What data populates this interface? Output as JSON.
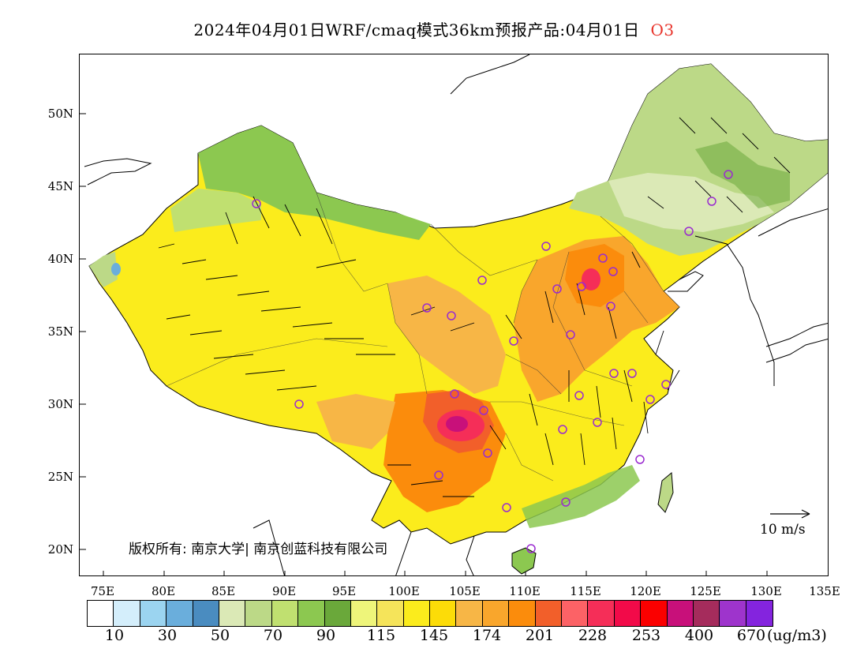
{
  "title": {
    "text": "2024年04月01日WRF/cmaq模式36km预报产品:04月01日",
    "species": "O3",
    "species_color": "#e8332a"
  },
  "axes": {
    "lat_labels": [
      "50N",
      "45N",
      "40N",
      "35N",
      "30N",
      "25N",
      "20N"
    ],
    "lon_labels": [
      "75E",
      "80E",
      "85E",
      "90E",
      "95E",
      "100E",
      "105E",
      "110E",
      "115E",
      "120E",
      "125E",
      "130E",
      "135E"
    ]
  },
  "copyright": "版权所有: 南京大学| 南京创蓝科技有限公司",
  "wind_reference": {
    "label": "10 m/s"
  },
  "legend": {
    "colors": [
      "#ffffff",
      "#d4eefb",
      "#9bd4f0",
      "#6aaedc",
      "#4a8cc0",
      "#dbe9b6",
      "#bcd987",
      "#c0e070",
      "#8cc850",
      "#6aa83a",
      "#eef57a",
      "#f5e45a",
      "#fbec1c",
      "#fcdc08",
      "#f7b646",
      "#f9a62c",
      "#fb8c0c",
      "#f25f2a",
      "#fc6266",
      "#f52e58",
      "#f20a49",
      "#fb0000",
      "#c8107a",
      "#a52c5c",
      "#9e34cc",
      "#8424de"
    ],
    "labels": [
      "10",
      "30",
      "50",
      "70",
      "90",
      "115",
      "145",
      "174",
      "201",
      "228",
      "253",
      "400",
      "670"
    ],
    "unit": "(ug/m3)"
  },
  "map": {
    "region": "China",
    "variable": "O3",
    "hotspot": "Sichuan Basin (~28N, 104-107E), red/magenta",
    "stations_color": "#9a2bd0"
  }
}
